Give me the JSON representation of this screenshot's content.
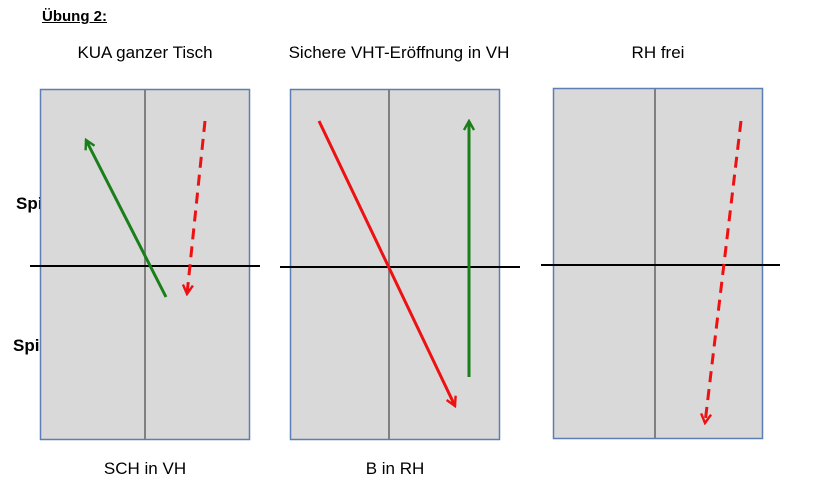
{
  "title": "Übung 2:",
  "players": {
    "a": "Spieler A",
    "b": "Spieler B"
  },
  "panels": [
    {
      "heading": "KUA ganzer Tisch",
      "caption": "SCH in VH"
    },
    {
      "heading": "Sichere VHT-Eröffnung in VH",
      "caption": "B in RH"
    },
    {
      "heading": "RH frei",
      "caption": ""
    }
  ],
  "colors": {
    "table": "#d9d9d9",
    "table_border": "#5b7fb5",
    "center_line": "#808080",
    "net": "#000000",
    "green_arrow": "#1a7f1a",
    "red_arrow": "#ee1111"
  }
}
